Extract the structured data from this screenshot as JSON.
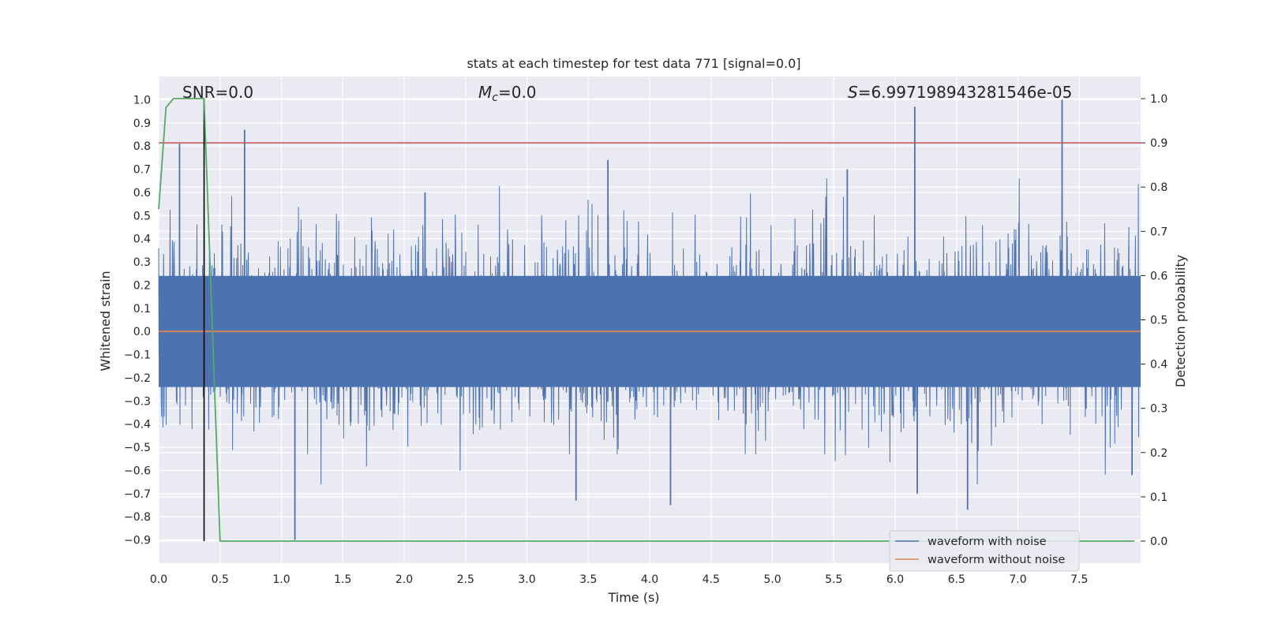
{
  "chart_data": {
    "type": "line",
    "title": "stats at each timestep for test data 771 [signal=0.0]",
    "xlabel": "Time (s)",
    "ylabel_left": "Whitened strain",
    "ylabel_right": "Detection probability",
    "xlim": [
      0.0,
      8.0
    ],
    "ylim_left": [
      -1.0,
      1.1
    ],
    "ylim_right": [
      -0.05,
      1.05
    ],
    "x_ticks": [
      "0.0",
      "0.5",
      "1.0",
      "1.5",
      "2.0",
      "2.5",
      "3.0",
      "3.5",
      "4.0",
      "4.5",
      "5.0",
      "5.5",
      "6.0",
      "6.5",
      "7.0",
      "7.5"
    ],
    "x_tick_values": [
      0.0,
      0.5,
      1.0,
      1.5,
      2.0,
      2.5,
      3.0,
      3.5,
      4.0,
      4.5,
      5.0,
      5.5,
      6.0,
      6.5,
      7.0,
      7.5
    ],
    "y_left_ticks": [
      "1.0",
      "0.9",
      "0.8",
      "0.7",
      "0.6",
      "0.5",
      "0.4",
      "0.3",
      "0.2",
      "0.1",
      "0.0",
      "−0.1",
      "−0.2",
      "−0.3",
      "−0.4",
      "−0.5",
      "−0.6",
      "−0.7",
      "−0.8",
      "−0.9"
    ],
    "y_left_tick_values": [
      1.0,
      0.9,
      0.8,
      0.7,
      0.6,
      0.5,
      0.4,
      0.3,
      0.2,
      0.1,
      0.0,
      -0.1,
      -0.2,
      -0.3,
      -0.4,
      -0.5,
      -0.6,
      -0.7,
      -0.8,
      -0.9
    ],
    "y_right_ticks": [
      "1.0",
      "0.9",
      "0.8",
      "0.7",
      "0.6",
      "0.5",
      "0.4",
      "0.3",
      "0.2",
      "0.1",
      "0.0"
    ],
    "y_right_tick_values": [
      1.0,
      0.9,
      0.8,
      0.7,
      0.6,
      0.5,
      0.4,
      0.3,
      0.2,
      0.1,
      0.0
    ],
    "annotations": {
      "snr": "SNR=0.0",
      "mc_symbol": "M",
      "mc_sub": "c",
      "mc_value": "=0.0",
      "s_symbol": "S",
      "s_value": "=6.997198943281546e-05"
    },
    "series": [
      {
        "name": "waveform with noise",
        "color": "#4c72b0",
        "axis": "left",
        "description_values": "dense noise, typical band -0.35..0.35",
        "spikes": [
          {
            "x": 0.17,
            "y": 0.81
          },
          {
            "x": 0.7,
            "y": 0.87
          },
          {
            "x": 1.11,
            "y": -0.9
          },
          {
            "x": 2.17,
            "y": 0.6
          },
          {
            "x": 3.4,
            "y": -0.73
          },
          {
            "x": 3.66,
            "y": 0.74
          },
          {
            "x": 4.17,
            "y": -0.75
          },
          {
            "x": 5.61,
            "y": 0.7
          },
          {
            "x": 6.16,
            "y": 0.97
          },
          {
            "x": 6.18,
            "y": -0.7
          },
          {
            "x": 6.59,
            "y": -0.77
          },
          {
            "x": 7.36,
            "y": 1.0
          },
          {
            "x": 7.93,
            "y": -0.62
          }
        ]
      },
      {
        "name": "waveform without noise",
        "color": "#dd8452",
        "axis": "left",
        "x": [
          0.0,
          8.0
        ],
        "y": [
          0.0,
          0.0
        ]
      },
      {
        "name": "detection probability",
        "color": "#55a868",
        "axis": "right",
        "x": [
          0.0,
          0.06,
          0.12,
          0.25,
          0.37,
          0.5,
          7.95
        ],
        "y": [
          0.75,
          0.98,
          1.0,
          1.0,
          1.0,
          0.0,
          0.0
        ]
      }
    ],
    "threshold": {
      "value": 0.9,
      "axis": "right",
      "color": "#c44e52"
    },
    "vline": {
      "x": 0.37,
      "color": "#000000"
    },
    "legend": {
      "position": "lower-right",
      "entries": [
        {
          "label": "waveform with noise",
          "color": "#4c72b0"
        },
        {
          "label": "waveform without noise",
          "color": "#dd8452"
        }
      ]
    },
    "style": {
      "background": "#eaeaf2",
      "grid": "#ffffff"
    }
  }
}
